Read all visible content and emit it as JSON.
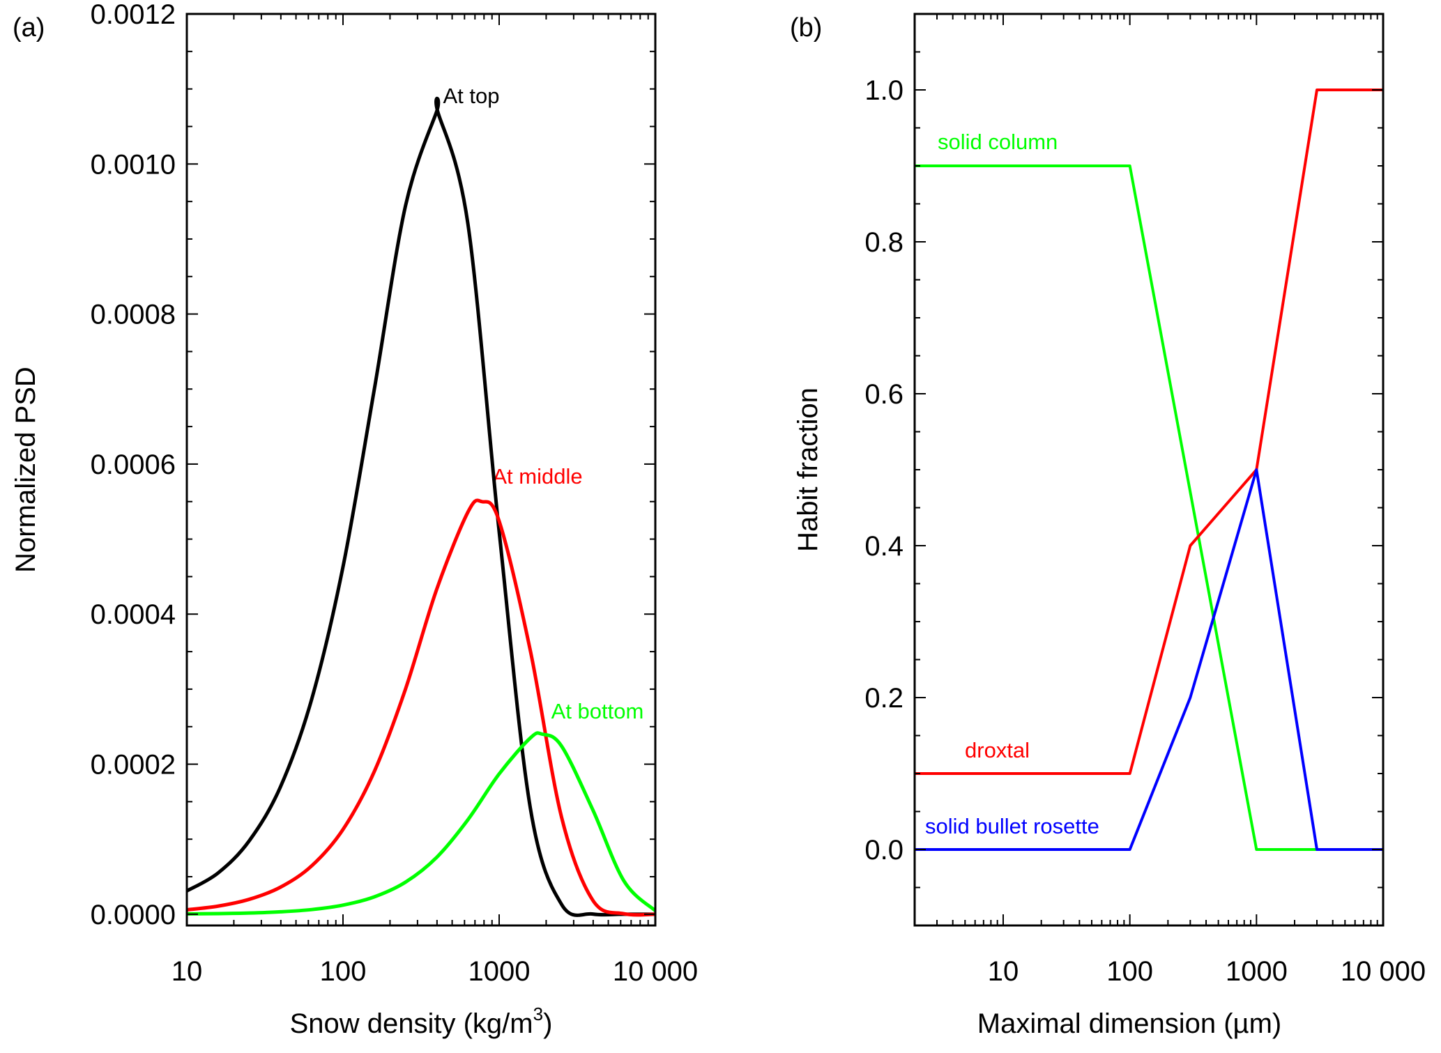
{
  "chart_data": [
    {
      "panel_label": "(a)",
      "type": "line",
      "xlabel": "Snow density (kg/m",
      "xlabel_sup": "3",
      "xlabel_end": ")",
      "ylabel": "Normalized PSD",
      "xscale": "log",
      "xlim": [
        10,
        10000
      ],
      "ylim": [
        -1.5e-05,
        0.0012
      ],
      "xticks": [
        10,
        100,
        1000,
        10000
      ],
      "xtick_labels": [
        "10",
        "100",
        "1000",
        "10 000"
      ],
      "yticks": [
        0,
        0.0002,
        0.0004,
        0.0006,
        0.0008,
        0.001,
        0.0012
      ],
      "ytick_labels": [
        "0.0000",
        "0.0002",
        "0.0004",
        "0.0006",
        "0.0008",
        "0.0010",
        "0.0012"
      ],
      "grid": false,
      "series": [
        {
          "name": "At top",
          "color": "#000000",
          "x": [
            10,
            15.85,
            25.12,
            39.81,
            63.1,
            100,
            158.5,
            251.2,
            398.1,
            404,
            631,
            1000,
            1585,
            2512,
            3981,
            6310,
            10000
          ],
          "y": [
            3.1e-05,
            5.5e-05,
            9.8e-05,
            0.00017,
            0.000287,
            0.000463,
            0.000699,
            0.000944,
            0.00107,
            0.00107,
            0.00092,
            0.00051,
            0.000141,
            1.3e-05,
            2e-07,
            0,
            0
          ]
        },
        {
          "name": "At middle",
          "color": "#ff0000",
          "x": [
            10,
            15.85,
            25.12,
            39.81,
            63.1,
            100,
            158.5,
            251.2,
            398.1,
            631,
            773,
            1000,
            1585,
            2512,
            3981,
            6310,
            10000
          ],
          "y": [
            5.9e-06,
            1.08e-05,
            1.99e-05,
            3.61e-05,
            6.46e-05,
            0.000113,
            0.00019,
            0.0003,
            0.000433,
            0.000536,
            0.00055,
            0.000524,
            0.000351,
            0.000129,
            1.85e-05,
            6e-07,
            0
          ]
        },
        {
          "name": "At bottom",
          "color": "#00ff00",
          "x": [
            10,
            15.85,
            25.12,
            39.81,
            63.1,
            100,
            158.5,
            251.2,
            398.1,
            631,
            1000,
            1585,
            1888,
            2512,
            3981,
            6310,
            10000
          ],
          "y": [
            4e-07,
            8e-07,
            1.6e-06,
            3.2e-06,
            6.2e-06,
            1.21e-05,
            2.31e-05,
            4.27e-05,
            7.58e-05,
            0.000126,
            0.000187,
            0.000235,
            0.00024,
            0.000224,
            0.000139,
            4.4e-05,
            4.6e-06
          ]
        }
      ],
      "annotations": [
        "At top",
        "At middle",
        "At bottom"
      ]
    },
    {
      "panel_label": "(b)",
      "type": "line",
      "xlabel": "Maximal dimension (µm)",
      "ylabel": "Habit fraction",
      "xscale": "log",
      "xlim": [
        2,
        10000
      ],
      "ylim": [
        -0.1,
        1.1
      ],
      "xticks": [
        10,
        100,
        1000,
        10000
      ],
      "xtick_labels": [
        "10",
        "100",
        "1000",
        "10 000"
      ],
      "yticks": [
        0,
        0.2,
        0.4,
        0.6,
        0.8,
        1.0
      ],
      "ytick_labels": [
        "0.0",
        "0.2",
        "0.4",
        "0.6",
        "0.8",
        "1.0"
      ],
      "grid": false,
      "series": [
        {
          "name": "solid column",
          "color": "#00ff00",
          "x": [
            2,
            100,
            1000,
            10000
          ],
          "y": [
            0.9,
            0.9,
            0,
            0
          ]
        },
        {
          "name": "droxtal",
          "color": "#ff0000",
          "x": [
            2,
            100,
            300,
            1000,
            3000,
            10000
          ],
          "y": [
            0.1,
            0.1,
            0.4,
            0.5,
            1.0,
            1.0
          ]
        },
        {
          "name": "solid bullet rosette",
          "color": "#0000ff",
          "x": [
            2,
            100,
            300,
            1000,
            3000,
            10000
          ],
          "y": [
            0,
            0,
            0.2,
            0.5,
            0,
            0
          ]
        }
      ],
      "annotations": [
        "solid column",
        "droxtal",
        "solid bullet rosette"
      ]
    }
  ]
}
